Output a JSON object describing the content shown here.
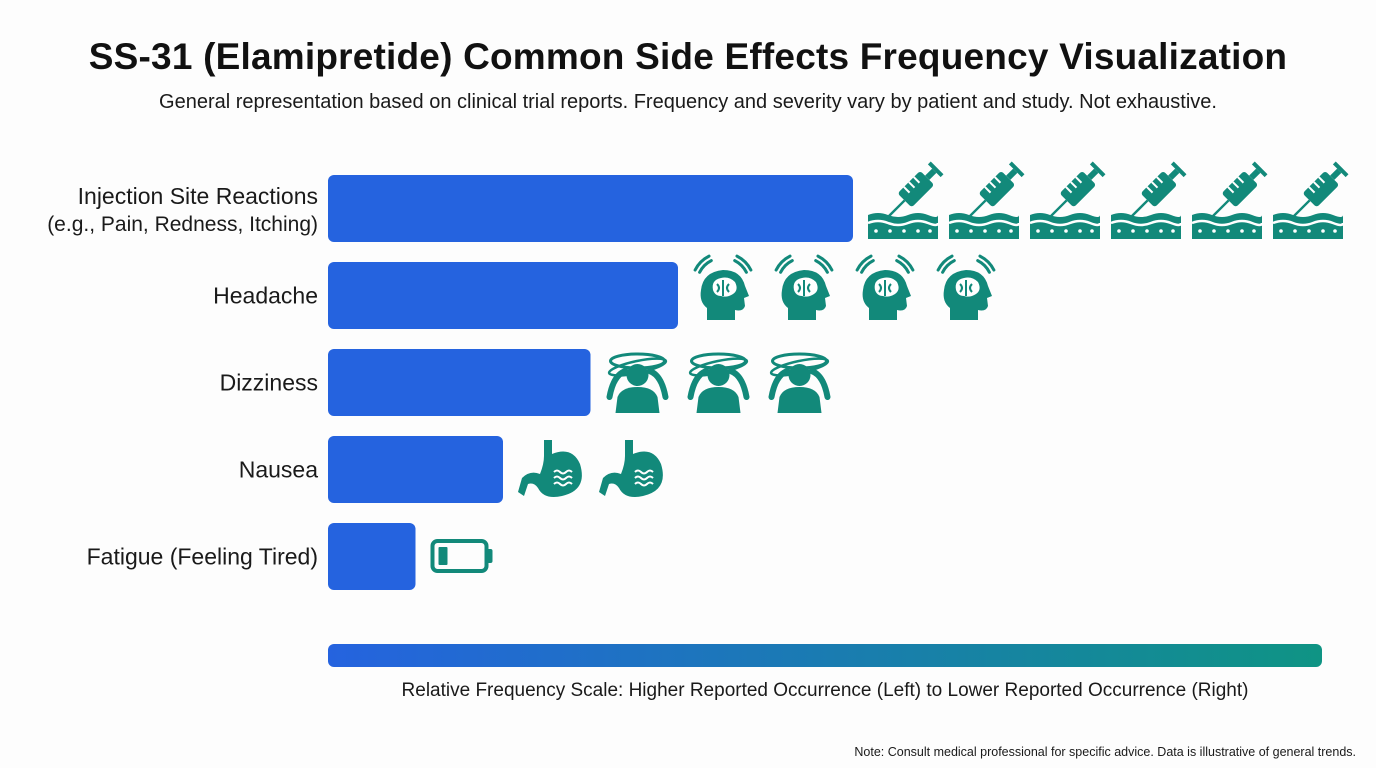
{
  "title": "SS-31 (Elamipretide) Common Side Effects Frequency Visualization",
  "subtitle": "General representation based on clinical trial reports. Frequency and severity vary by patient and study. Not exhaustive.",
  "colors": {
    "bar": "#2563df",
    "icon": "#12897a",
    "gradient_start": "#2563df",
    "gradient_end": "#0f9484"
  },
  "chart_data": {
    "type": "bar",
    "orientation": "horizontal",
    "unit": "icon count (relative frequency, illustrative)",
    "xlim": [
      0,
      6
    ],
    "categories": [
      "Injection Site Reactions (e.g., Pain, Redness, Itching)",
      "Headache",
      "Dizziness",
      "Nausea",
      "Fatigue (Feeling Tired)"
    ],
    "labels": [
      {
        "main": "Injection Site Reactions",
        "sub": "(e.g., Pain, Redness, Itching)",
        "icon": "syringe-icon"
      },
      {
        "main": "Headache",
        "sub": "",
        "icon": "headache-icon"
      },
      {
        "main": "Dizziness",
        "sub": "",
        "icon": "dizziness-icon"
      },
      {
        "main": "Nausea",
        "sub": "",
        "icon": "stomach-icon"
      },
      {
        "main": "Fatigue (Feeling Tired)",
        "sub": "",
        "icon": "low-battery-icon"
      }
    ],
    "values": [
      6,
      4,
      3,
      2,
      1
    ],
    "scale_caption": "Relative Frequency Scale: Higher Reported Occurrence (Left) to Lower Reported Occurrence (Right)"
  },
  "footer_note": "Note: Consult medical professional for specific advice. Data is illustrative of general trends."
}
